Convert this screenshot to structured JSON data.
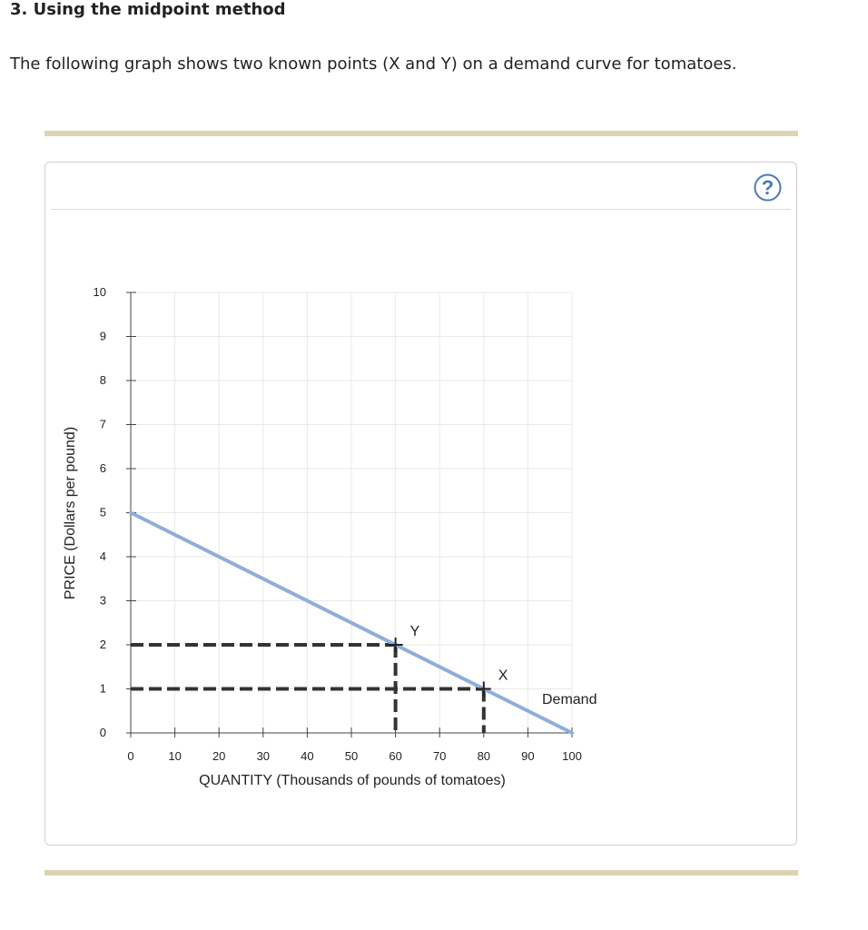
{
  "question": {
    "title": "3. Using the midpoint method",
    "text": "The following graph shows two known points (X and Y) on a demand curve for tomatoes."
  },
  "help_button": {
    "label": "?",
    "color": "#4a7ab8"
  },
  "chart_data": {
    "type": "line",
    "xlabel": "QUANTITY (Thousands of pounds of tomatoes)",
    "ylabel": "PRICE (Dollars per pound)",
    "xlim": [
      0,
      100
    ],
    "ylim": [
      0,
      10
    ],
    "xticks": [
      0,
      10,
      20,
      30,
      40,
      50,
      60,
      70,
      80,
      90,
      100
    ],
    "yticks": [
      0,
      1,
      2,
      3,
      4,
      5,
      6,
      7,
      8,
      9,
      10
    ],
    "grid": true,
    "series": [
      {
        "name": "Demand",
        "color": "#8eaedb",
        "x": [
          0,
          100
        ],
        "y": [
          5,
          0
        ]
      }
    ],
    "points": [
      {
        "label": "Y",
        "x": 60,
        "y": 2
      },
      {
        "label": "X",
        "x": 80,
        "y": 1
      }
    ],
    "guide_color": "#333333",
    "grid_color": "#e9e9e9"
  }
}
